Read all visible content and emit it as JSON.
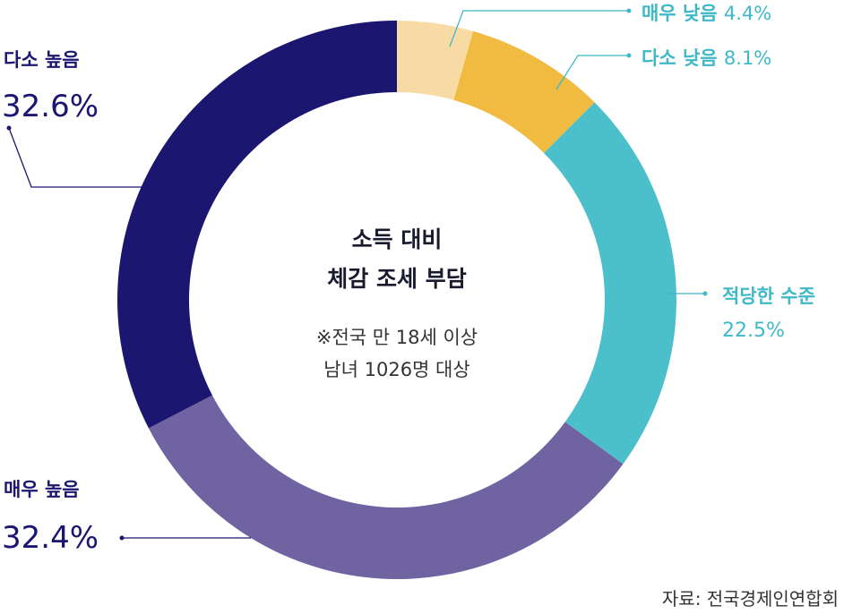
{
  "chart_data": {
    "type": "pie",
    "variant": "donut",
    "center_title": [
      "소득 대비",
      "체감 조세 부담"
    ],
    "center_note": [
      "※전국 만 18세 이상",
      "남녀 1026명 대상"
    ],
    "slices": [
      {
        "label": "매우 낮음",
        "value": 4.4,
        "value_text": "4.4%",
        "color": "#f8dba4"
      },
      {
        "label": "다소 낮음",
        "value": 8.1,
        "value_text": "8.1%",
        "color": "#f0bb40"
      },
      {
        "label": "적당한 수준",
        "value": 22.5,
        "value_text": "22.5%",
        "color": "#4bbfca"
      },
      {
        "label": "매우 높음",
        "value": 32.4,
        "value_text": "32.4%",
        "color": "#6f63a2"
      },
      {
        "label": "다소 높음",
        "value": 32.6,
        "value_text": "32.6%",
        "color": "#1b1670"
      }
    ],
    "source": "자료: 전국경제인연합회"
  },
  "colors": {
    "label_teal": "#3fb8c8",
    "label_navy": "#1b1670",
    "leader_teal": "#3fb8c8",
    "leader_navy": "#1b1670"
  }
}
